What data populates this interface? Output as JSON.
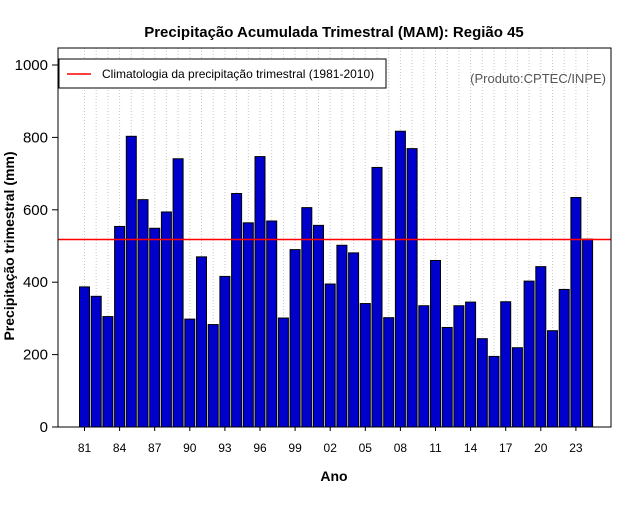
{
  "chart_data": {
    "type": "bar",
    "title": "Precipitação Acumulada Trimestral (MAM): Região 45",
    "xlabel": "Ano",
    "ylabel": "Precipitação trimestral (mm)",
    "ylim": [
      0,
      1000
    ],
    "yticks": [
      0,
      200,
      400,
      600,
      800,
      1000
    ],
    "categories": [
      "1981",
      "1982",
      "1983",
      "1984",
      "1985",
      "1986",
      "1987",
      "1988",
      "1989",
      "1990",
      "1991",
      "1992",
      "1993",
      "1994",
      "1995",
      "1996",
      "1997",
      "1998",
      "1999",
      "2000",
      "2001",
      "2002",
      "2003",
      "2004",
      "2005",
      "2006",
      "2007",
      "2008",
      "2009",
      "2010",
      "2011",
      "2012",
      "2013",
      "2014",
      "2015",
      "2016",
      "2017",
      "2018",
      "2019",
      "2020",
      "2021",
      "2022",
      "2023",
      "2024"
    ],
    "xtick_labels": [
      "81",
      "84",
      "87",
      "90",
      "93",
      "96",
      "99",
      "02",
      "05",
      "08",
      "11",
      "14",
      "17",
      "20",
      "23"
    ],
    "xtick_indices": [
      0,
      3,
      6,
      9,
      12,
      15,
      18,
      21,
      24,
      27,
      30,
      33,
      36,
      39,
      42
    ],
    "values": [
      387,
      361,
      305,
      554,
      803,
      628,
      549,
      594,
      741,
      298,
      470,
      283,
      416,
      645,
      564,
      747,
      569,
      301,
      490,
      606,
      557,
      395,
      502,
      481,
      341,
      717,
      302,
      817,
      769,
      335,
      460,
      275,
      335,
      345,
      244,
      195,
      346,
      219,
      403,
      443,
      266,
      380,
      634,
      519
    ],
    "bar_color": "#0000CD",
    "climatology": {
      "value": 518,
      "label": "Climatologia da precipitação trimestral (1981-2010)",
      "color": "#FF0000"
    },
    "legend_position": "top-left",
    "credit": "(Produto:CPTEC/INPE)"
  }
}
